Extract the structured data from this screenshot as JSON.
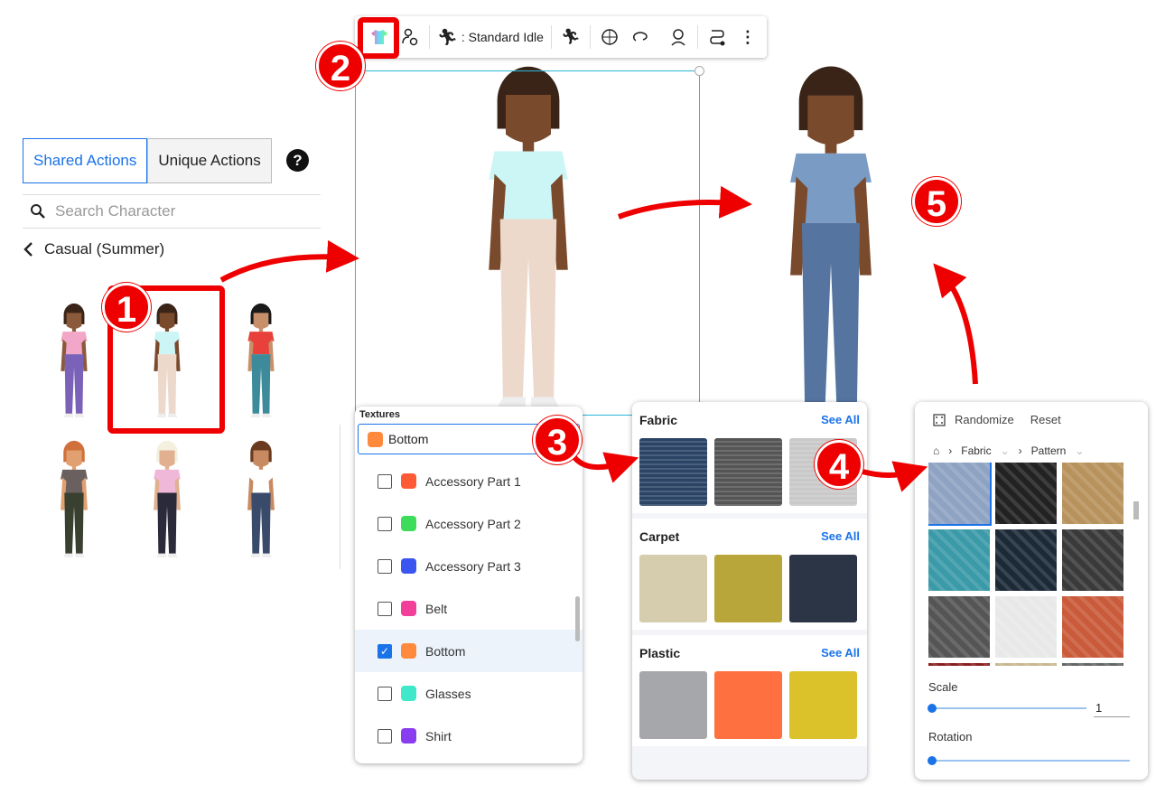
{
  "left_panel": {
    "tabs": [
      {
        "label": "Shared Actions",
        "active": true
      },
      {
        "label": "Unique Actions",
        "active": false
      }
    ],
    "help_icon": "question-circle-icon",
    "search_placeholder": "Search Character",
    "category": "Casual (Summer)"
  },
  "toolbar": {
    "animation_label": ": Standard Idle"
  },
  "badges": [
    "1",
    "2",
    "3",
    "4",
    "5"
  ],
  "textures": {
    "label": "Textures",
    "selected": "Bottom",
    "selected_color": "#ff8a3d",
    "items": [
      {
        "label": "Accessory Part 1",
        "color": "#ff5a36",
        "checked": false
      },
      {
        "label": "Accessory Part 2",
        "color": "#3ddc5a",
        "checked": false
      },
      {
        "label": "Accessory Part 3",
        "color": "#3b55f0",
        "checked": false
      },
      {
        "label": "Belt",
        "color": "#f23f9a",
        "checked": false
      },
      {
        "label": "Bottom",
        "color": "#ff8a3d",
        "checked": true
      },
      {
        "label": "Glasses",
        "color": "#3fe8c8",
        "checked": false
      },
      {
        "label": "Shirt",
        "color": "#8a3df0",
        "checked": false
      }
    ]
  },
  "categories": [
    {
      "title": "Fabric",
      "see_all": "See All",
      "swatches": [
        "#2b4466",
        "#555555",
        "#c9c9c9"
      ]
    },
    {
      "title": "Carpet",
      "see_all": "See All",
      "swatches": [
        "#d6ccae",
        "#b8a63a",
        "#2c3546"
      ]
    },
    {
      "title": "Plastic",
      "see_all": "See All",
      "swatches": [
        "#a6a7ab",
        "#ff7040",
        "#dcc22a"
      ]
    }
  ],
  "pattern_panel": {
    "randomize": "Randomize",
    "reset": "Reset",
    "breadcrumb": [
      "Fabric",
      "Pattern"
    ],
    "swatches": [
      "#8ea3c2",
      "#222222",
      "#b8925c",
      "#3b9aa8",
      "#1c2a38",
      "#3a3a3a",
      "#555",
      "#e8e8e8",
      "#c95a3a"
    ],
    "scale_label": "Scale",
    "scale_value": "1",
    "rotation_label": "Rotation"
  }
}
